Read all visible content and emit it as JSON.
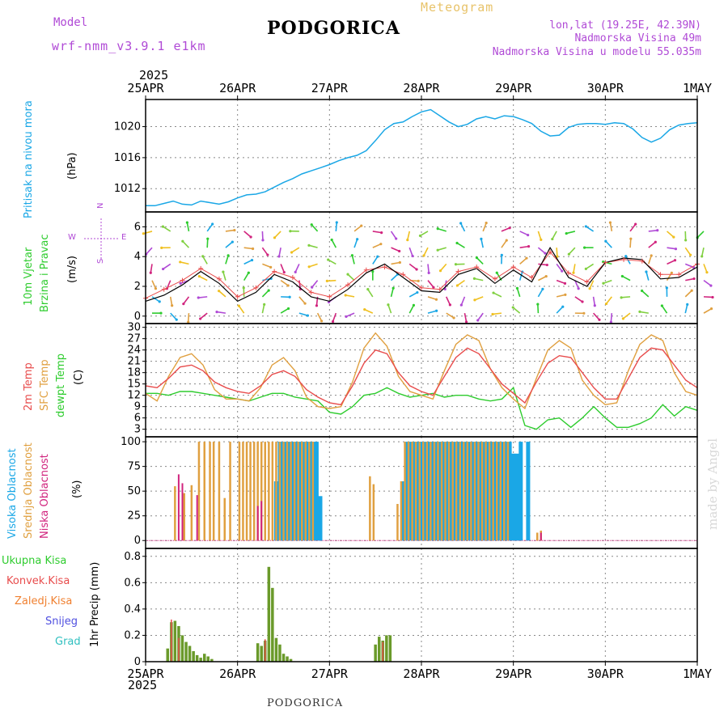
{
  "header": {
    "model_label": "Model",
    "model_version": "wrf-nmm_v3.9.1 e1km",
    "city": "PODGORICA",
    "meteogram": "Meteogram",
    "coords": "lon,lat (19.25E, 42.39N)",
    "elevation": "Nadmorska Visina 49m",
    "model_elevation": "Nadmorska Visina u modelu 55.035m",
    "year_top": "2025",
    "year_bottom": "2025",
    "footer_city": "PODGORICA",
    "credit": "made by Angel"
  },
  "colors": {
    "pressure": "#1aa7e6",
    "temp2m": "#e84c4c",
    "sfc": "#e0a040",
    "dew": "#2ecc2e",
    "high_cloud": "#1aa7e6",
    "mid_cloud": "#e0a040",
    "low_cloud": "#d1247e",
    "total_precip": "#6a9a2a",
    "conv_precip": "#e84c4c",
    "frozen": "#f08030",
    "snow": "#5050e0",
    "graupel": "#30c0c0",
    "wind_dir_label": "#b04ad6"
  },
  "chart_data": [
    {
      "type": "line",
      "panel": "pressure",
      "ylabel_a": "Pritisak na nivou mora",
      "ylabel_b": "(hPa)",
      "x_ticks": [
        "25APR",
        "26APR",
        "27APR",
        "28APR",
        "29APR",
        "30APR",
        "1MAY"
      ],
      "x_days": [
        0,
        1,
        2,
        3,
        4,
        5,
        6
      ],
      "yticks": [
        "1012",
        "1016",
        "1020"
      ],
      "ylim": [
        1009,
        1023.5
      ],
      "x": [
        0,
        0.1,
        0.2,
        0.3,
        0.4,
        0.5,
        0.6,
        0.7,
        0.8,
        0.9,
        1.0,
        1.1,
        1.2,
        1.3,
        1.4,
        1.5,
        1.6,
        1.7,
        1.8,
        1.9,
        2.0,
        2.1,
        2.2,
        2.3,
        2.4,
        2.5,
        2.6,
        2.7,
        2.8,
        2.9,
        3.0,
        3.1,
        3.2,
        3.3,
        3.4,
        3.5,
        3.6,
        3.7,
        3.8,
        3.9,
        4.0,
        4.1,
        4.2,
        4.3,
        4.4,
        4.5,
        4.6,
        4.7,
        4.8,
        4.9,
        5.0,
        5.1,
        5.2,
        5.3,
        5.4,
        5.5,
        5.6,
        5.7,
        5.8,
        5.9,
        6.0
      ],
      "values": [
        1009.8,
        1009.8,
        1010.1,
        1010.4,
        1010.0,
        1009.9,
        1010.4,
        1010.2,
        1010.0,
        1010.3,
        1010.8,
        1011.2,
        1011.3,
        1011.6,
        1012.2,
        1012.8,
        1013.3,
        1013.9,
        1014.3,
        1014.7,
        1015.1,
        1015.6,
        1016.0,
        1016.3,
        1016.9,
        1018.2,
        1019.6,
        1020.4,
        1020.6,
        1021.3,
        1021.9,
        1022.2,
        1021.4,
        1020.6,
        1020.0,
        1020.3,
        1021.0,
        1021.3,
        1021.0,
        1021.4,
        1021.3,
        1020.9,
        1020.4,
        1019.4,
        1018.8,
        1018.9,
        1019.9,
        1020.3,
        1020.4,
        1020.4,
        1020.3,
        1020.5,
        1020.4,
        1019.7,
        1018.6,
        1018.0,
        1018.5,
        1019.6,
        1020.2,
        1020.4,
        1020.5
      ]
    },
    {
      "type": "line",
      "panel": "wind",
      "ylabel_a": "10m Vjetar",
      "ylabel_b": "Brzina i Pravac",
      "ylabel_c": "(m/s)",
      "dir_top": "N",
      "dir_left": "W",
      "dir_right": "E",
      "dir_bottom": "S",
      "yticks": [
        "0",
        "2",
        "4",
        "6"
      ],
      "ylim": [
        -0.5,
        7
      ],
      "x": [
        0,
        0.2,
        0.4,
        0.6,
        0.8,
        1.0,
        1.2,
        1.4,
        1.6,
        1.8,
        2.0,
        2.2,
        2.4,
        2.6,
        2.8,
        3.0,
        3.2,
        3.4,
        3.6,
        3.8,
        4.0,
        4.2,
        4.4,
        4.6,
        4.8,
        5.0,
        5.2,
        5.4,
        5.6,
        5.8,
        6.0
      ],
      "series": [
        {
          "name": "speed",
          "values": [
            1.0,
            1.4,
            2.1,
            3.0,
            2.2,
            1.0,
            1.6,
            2.8,
            2.3,
            1.3,
            1.0,
            1.8,
            2.9,
            3.5,
            2.6,
            1.7,
            1.6,
            2.8,
            3.2,
            2.2,
            3.1,
            2.3,
            4.6,
            2.6,
            2.0,
            3.6,
            3.9,
            3.8,
            2.5,
            2.6,
            3.3
          ]
        },
        {
          "name": "gust",
          "values": [
            1.2,
            1.8,
            2.4,
            3.2,
            2.5,
            1.3,
            1.9,
            3.0,
            2.6,
            1.6,
            1.3,
            2.1,
            3.1,
            3.3,
            2.8,
            1.9,
            1.8,
            3.0,
            3.3,
            2.5,
            3.3,
            2.6,
            4.3,
            2.9,
            2.3,
            3.6,
            3.8,
            3.7,
            2.8,
            2.8,
            3.5
          ]
        }
      ]
    },
    {
      "type": "line",
      "panel": "temperature",
      "ylabel_a": "2m Temp",
      "ylabel_b": "SFC Temp",
      "ylabel_c": "dewpt Temp",
      "ylabel_d": "(C)",
      "yticks": [
        "3",
        "6",
        "9",
        "12",
        "15",
        "18",
        "21",
        "24",
        "27",
        "30"
      ],
      "ylim": [
        1,
        31
      ],
      "x": [
        0,
        0.125,
        0.25,
        0.375,
        0.5,
        0.625,
        0.75,
        0.875,
        1.0,
        1.125,
        1.25,
        1.375,
        1.5,
        1.625,
        1.75,
        1.875,
        2.0,
        2.125,
        2.25,
        2.375,
        2.5,
        2.625,
        2.75,
        2.875,
        3.0,
        3.125,
        3.25,
        3.375,
        3.5,
        3.625,
        3.75,
        3.875,
        4.0,
        4.125,
        4.25,
        4.375,
        4.5,
        4.625,
        4.75,
        4.875,
        5.0,
        5.125,
        5.25,
        5.375,
        5.5,
        5.625,
        5.75,
        5.875,
        6.0
      ],
      "series": [
        {
          "name": "2m Temp",
          "values": [
            14.5,
            14.0,
            16.5,
            19.5,
            20.0,
            18.5,
            15.5,
            14.0,
            13.0,
            12.5,
            14.5,
            17.5,
            18.5,
            17.0,
            13.5,
            11.5,
            10.0,
            9.5,
            14.5,
            20.5,
            24.0,
            23.0,
            18.0,
            14.5,
            13.0,
            12.0,
            17.0,
            22.0,
            24.5,
            23.0,
            19.0,
            15.0,
            12.5,
            10.0,
            15.5,
            20.5,
            22.5,
            22.0,
            18.0,
            14.0,
            11.0,
            11.0,
            16.5,
            22.0,
            24.5,
            24.0,
            20.0,
            16.0,
            14.0
          ]
        },
        {
          "name": "SFC Temp",
          "values": [
            12.5,
            10.5,
            17.0,
            22.0,
            23.0,
            20.0,
            13.5,
            11.0,
            11.0,
            10.5,
            14.0,
            20.0,
            22.0,
            18.5,
            11.5,
            9.0,
            8.5,
            9.0,
            15.5,
            24.5,
            28.5,
            25.0,
            17.0,
            13.0,
            12.0,
            11.0,
            18.5,
            25.5,
            28.0,
            26.5,
            19.0,
            14.0,
            11.0,
            8.5,
            16.5,
            24.0,
            26.5,
            24.5,
            16.0,
            12.0,
            9.5,
            10.0,
            18.5,
            25.5,
            28.0,
            26.5,
            18.0,
            13.0,
            12.0
          ]
        },
        {
          "name": "dewpt Temp",
          "values": [
            12.5,
            12.5,
            12.0,
            13.0,
            13.0,
            12.5,
            12.0,
            11.5,
            11.0,
            10.5,
            11.5,
            12.5,
            12.5,
            11.5,
            11.0,
            10.5,
            7.5,
            7.0,
            9.0,
            12.0,
            12.5,
            14.0,
            12.5,
            11.5,
            12.0,
            12.5,
            11.5,
            12.0,
            12.0,
            11.0,
            10.5,
            11.0,
            14.0,
            4.0,
            3.0,
            5.5,
            6.0,
            3.5,
            6.0,
            9.0,
            6.0,
            3.5,
            3.5,
            4.5,
            6.0,
            9.5,
            6.5,
            9.0,
            8.0
          ]
        }
      ]
    },
    {
      "type": "bar",
      "panel": "clouds",
      "ylabel_a": "Visoka Oblacnost",
      "ylabel_b": "Srednja Oblacnost",
      "ylabel_c": "Niska Oblacnost",
      "ylabel_d": "(%)",
      "yticks": [
        "0",
        "25",
        "50",
        "75",
        "100"
      ],
      "ylim": [
        -8,
        105
      ],
      "series": [
        {
          "name": "Visoka Oblacnost",
          "x": [
            1.42,
            1.46,
            1.5,
            1.54,
            1.58,
            1.62,
            1.66,
            1.7,
            1.74,
            1.78,
            1.82,
            1.86,
            1.9,
            2.8,
            2.84,
            2.88,
            2.92,
            2.96,
            3.0,
            3.04,
            3.08,
            3.12,
            3.16,
            3.2,
            3.24,
            3.28,
            3.32,
            3.36,
            3.4,
            3.44,
            3.48,
            3.52,
            3.56,
            3.6,
            3.64,
            3.68,
            3.72,
            3.76,
            3.8,
            3.84,
            3.88,
            3.92,
            3.96,
            4.0,
            4.04,
            4.08,
            4.16
          ],
          "values": [
            60,
            100,
            100,
            100,
            100,
            100,
            100,
            100,
            100,
            100,
            100,
            100,
            45,
            60,
            100,
            100,
            100,
            100,
            100,
            100,
            100,
            100,
            100,
            100,
            100,
            100,
            100,
            100,
            100,
            100,
            100,
            100,
            100,
            100,
            100,
            100,
            100,
            100,
            100,
            100,
            100,
            100,
            100,
            88,
            88,
            100,
            100
          ]
        },
        {
          "name": "Srednja Oblacnost",
          "x": [
            0.32,
            0.42,
            0.5,
            0.58,
            0.64,
            0.7,
            0.74,
            0.8,
            0.86,
            0.92,
            1.02,
            1.06,
            1.1,
            1.14,
            1.18,
            1.22,
            1.26,
            1.3,
            1.34,
            1.38,
            1.42,
            1.46,
            1.5,
            1.54,
            1.58,
            1.62,
            1.66,
            1.7,
            1.74,
            1.78,
            1.82,
            2.44,
            2.48,
            2.74,
            2.78,
            2.82,
            2.86,
            2.9,
            2.94,
            2.98,
            3.02,
            3.06,
            3.1,
            3.14,
            3.18,
            3.22,
            3.26,
            3.3,
            3.34,
            3.38,
            3.42,
            3.46,
            3.5,
            3.54,
            3.58,
            3.62,
            3.66,
            3.7,
            3.74,
            3.78,
            3.82,
            3.86,
            3.9,
            3.94,
            4.26,
            4.3
          ],
          "values": [
            55,
            48,
            56,
            100,
            100,
            100,
            100,
            100,
            43,
            100,
            100,
            100,
            100,
            100,
            100,
            100,
            100,
            100,
            100,
            100,
            100,
            100,
            100,
            100,
            100,
            100,
            100,
            100,
            100,
            100,
            100,
            65,
            57,
            37,
            60,
            100,
            100,
            100,
            100,
            100,
            100,
            100,
            100,
            100,
            100,
            100,
            100,
            100,
            100,
            100,
            100,
            100,
            100,
            100,
            100,
            100,
            100,
            100,
            100,
            100,
            100,
            100,
            100,
            100,
            8,
            10
          ]
        },
        {
          "name": "Niska Oblacnost",
          "x": [
            0.36,
            0.4,
            0.56,
            1.22,
            1.26,
            4.3
          ],
          "values": [
            67,
            58,
            46,
            35,
            40,
            8
          ]
        }
      ]
    },
    {
      "type": "bar",
      "panel": "precip",
      "ylabel": "1hr Precip (mm)",
      "legend": [
        "Ukupna Kisa",
        "Konvek.Kisa",
        "Zaledj.Kisa",
        "Snijeg",
        "Grad"
      ],
      "yticks": [
        "0",
        "0.2",
        "0.4",
        "0.6",
        "0.8"
      ],
      "ylim": [
        0,
        0.86
      ],
      "series": [
        {
          "name": "Ukupna Kisa",
          "x": [
            0.24,
            0.28,
            0.32,
            0.36,
            0.4,
            0.44,
            0.48,
            0.52,
            0.56,
            0.6,
            0.64,
            0.68,
            0.72,
            1.22,
            1.26,
            1.3,
            1.34,
            1.38,
            1.42,
            1.46,
            1.5,
            1.54,
            1.58,
            2.5,
            2.54,
            2.58,
            2.62,
            2.66
          ],
          "values": [
            0.1,
            0.3,
            0.31,
            0.27,
            0.2,
            0.15,
            0.12,
            0.08,
            0.05,
            0.03,
            0.06,
            0.04,
            0.02,
            0.14,
            0.12,
            0.16,
            0.72,
            0.56,
            0.18,
            0.13,
            0.06,
            0.04,
            0.02,
            0.13,
            0.19,
            0.16,
            0.2,
            0.2
          ]
        },
        {
          "name": "Konvek.Kisa",
          "x": [
            0.28,
            0.36,
            1.3,
            2.58
          ],
          "values": [
            0.32,
            0.18,
            0.17,
            0.15
          ]
        }
      ]
    }
  ]
}
